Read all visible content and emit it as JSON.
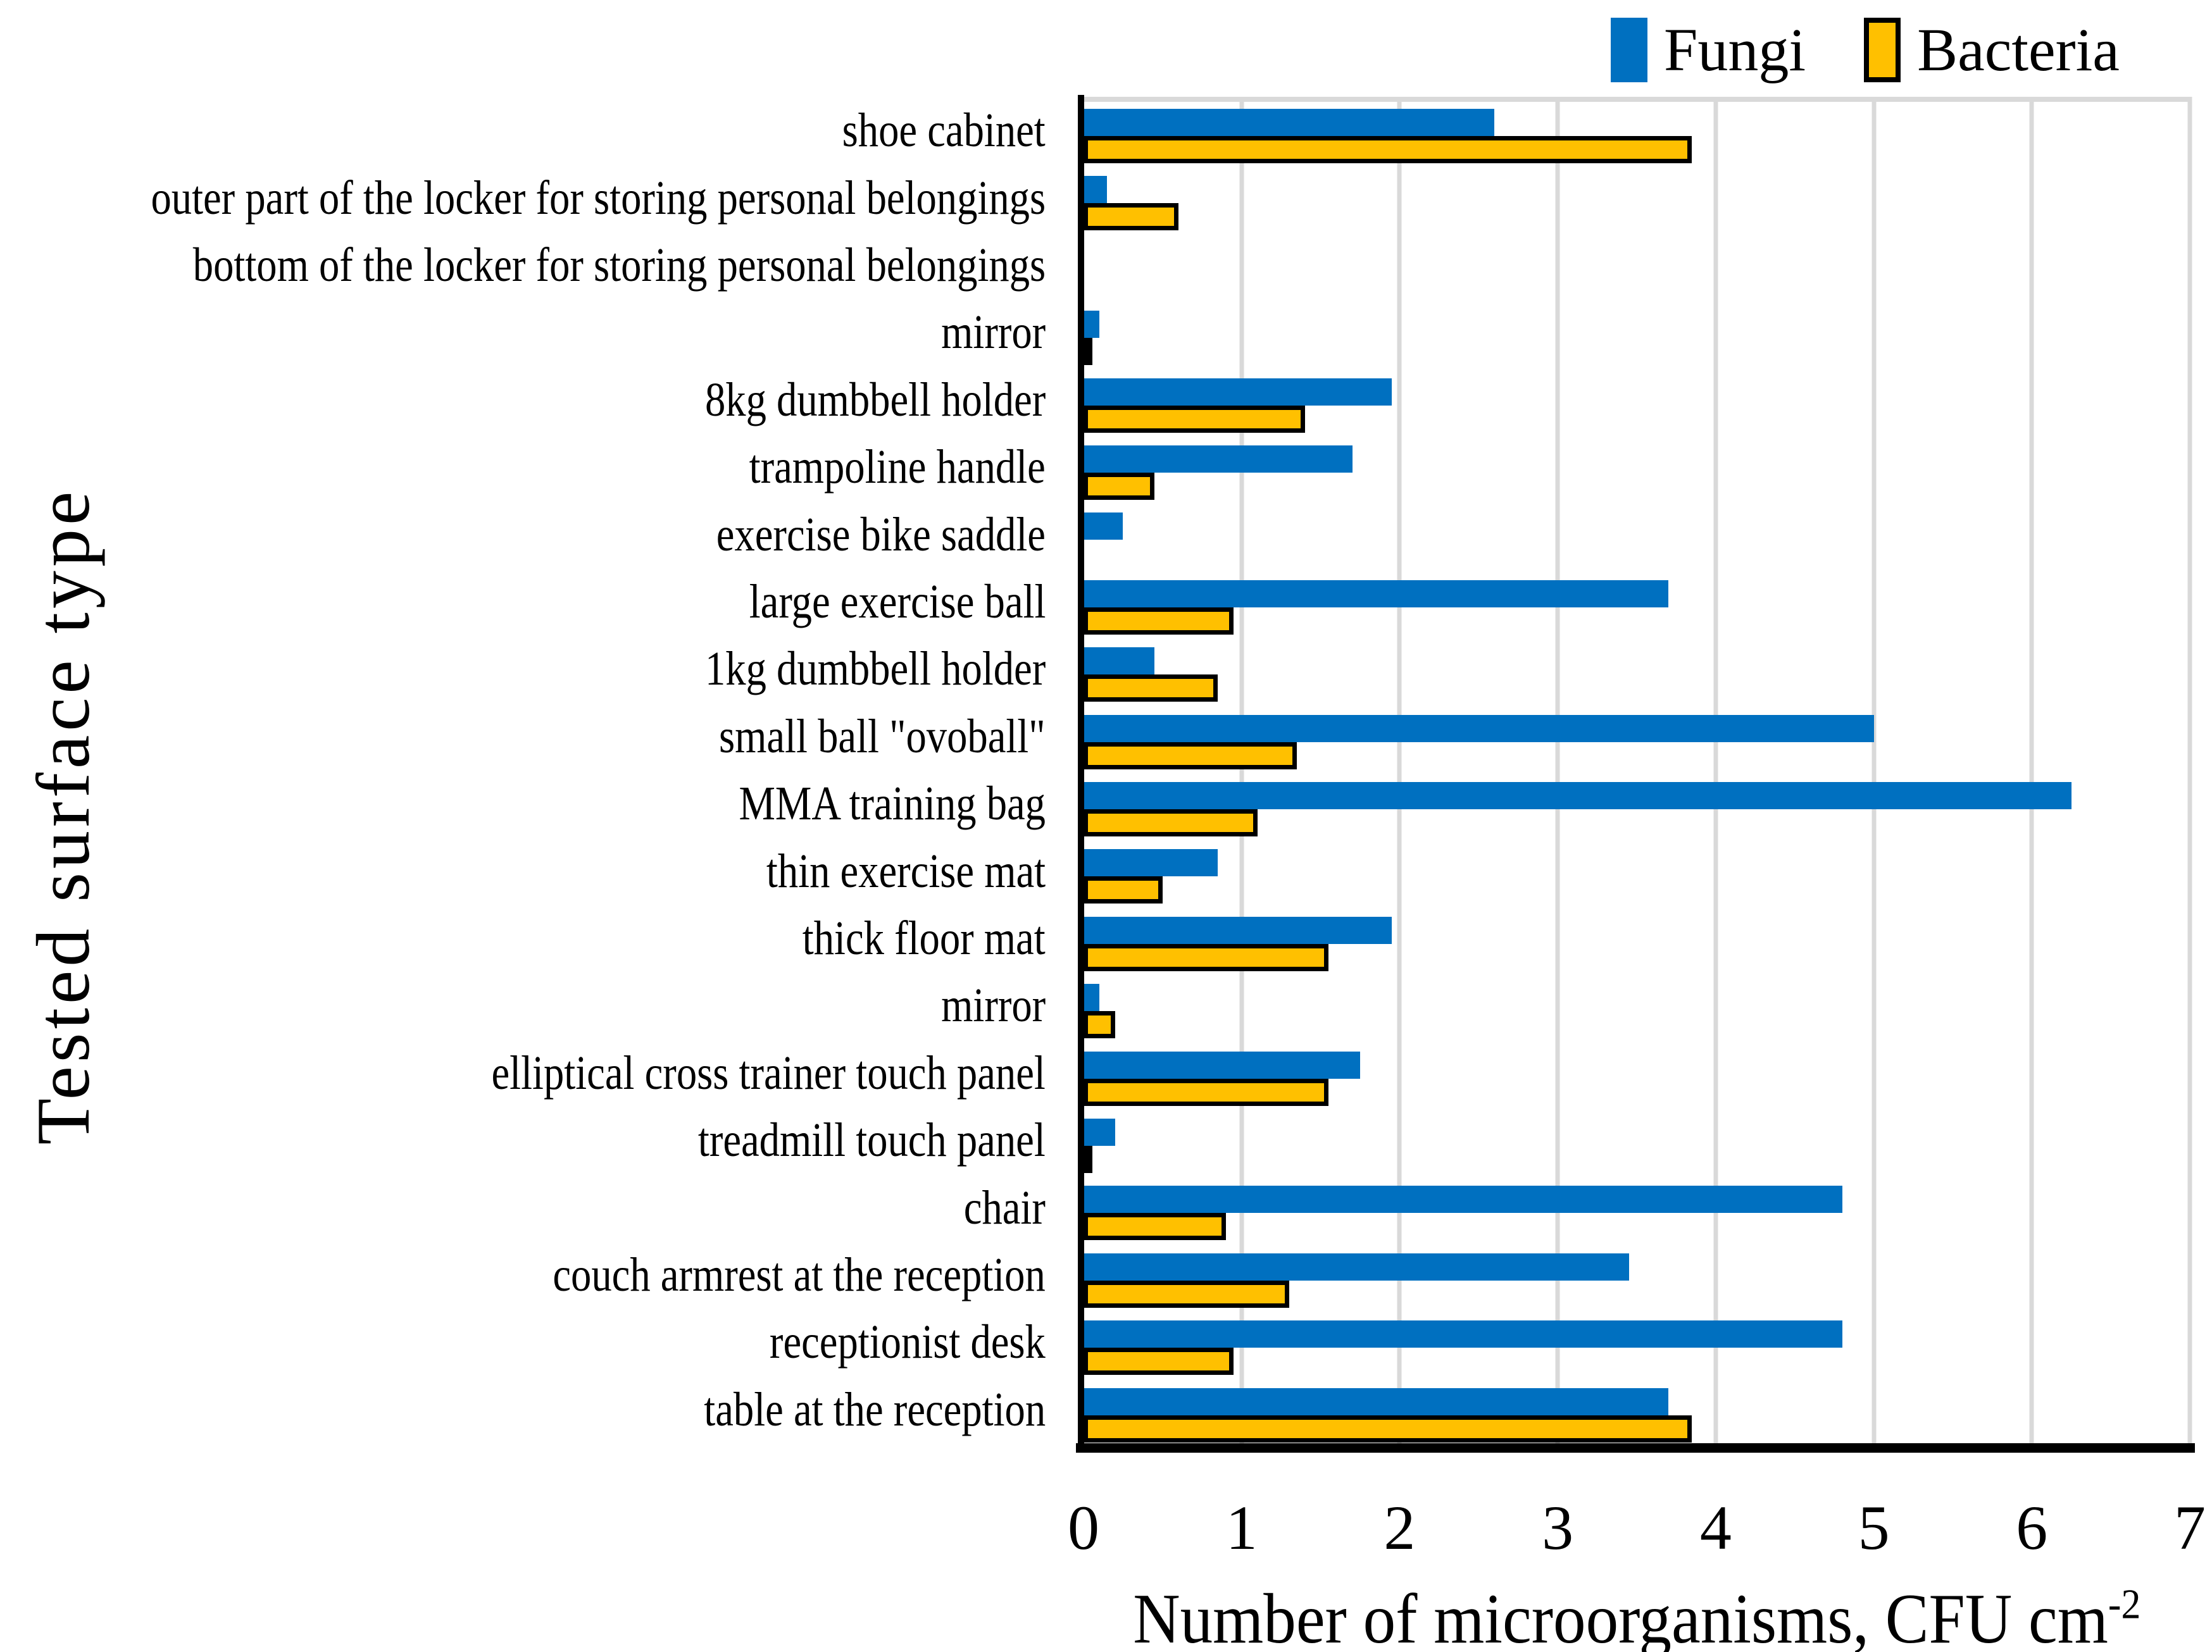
{
  "chart_data": {
    "type": "bar",
    "orientation": "horizontal",
    "title": "",
    "xlabel_main": "Number of microorganisms, CFU cm",
    "xlabel_superscript": "-2",
    "ylabel": "Tested surface type",
    "xlim": [
      0,
      7
    ],
    "xticks": [
      0,
      1,
      2,
      3,
      4,
      5,
      6,
      7
    ],
    "grid": "vertical-major-only",
    "legend_position": "top-right",
    "categories": [
      "shoe cabinet",
      "outer part of the locker for storing personal belongings",
      "bottom of the locker for storing personal belongings",
      "mirror",
      "8kg dumbbell holder",
      "trampoline handle",
      "exercise bike saddle",
      "large exercise ball",
      "1kg dumbbell holder",
      "small ball \"ovoball\"",
      "MMA training bag",
      "thin exercise mat",
      "thick floor mat",
      "mirror",
      "elliptical cross trainer touch panel",
      "treadmill touch panel",
      "chair",
      "couch armrest at the reception",
      "receptionist desk",
      "table at the reception"
    ],
    "series": [
      {
        "name": "Fungi",
        "color": "#0070C0",
        "values": [
          2.6,
          0.15,
          0,
          0.1,
          1.95,
          1.7,
          0.25,
          3.7,
          0.45,
          5.0,
          6.25,
          0.85,
          1.95,
          0.1,
          1.75,
          0.2,
          4.8,
          3.45,
          4.8,
          3.7
        ]
      },
      {
        "name": "Bacteria",
        "color": "#FFC000",
        "border_color": "#000000",
        "values": [
          3.85,
          0.6,
          0,
          0.05,
          1.4,
          0.45,
          0,
          0.95,
          0.85,
          1.35,
          1.1,
          0.5,
          1.55,
          0.2,
          1.55,
          0.05,
          0.9,
          1.3,
          0.95,
          3.85
        ]
      }
    ],
    "colors": {
      "grid": "#D9D9D9",
      "axis": "#000000",
      "background": "#FFFFFF",
      "text": "#000000"
    }
  }
}
